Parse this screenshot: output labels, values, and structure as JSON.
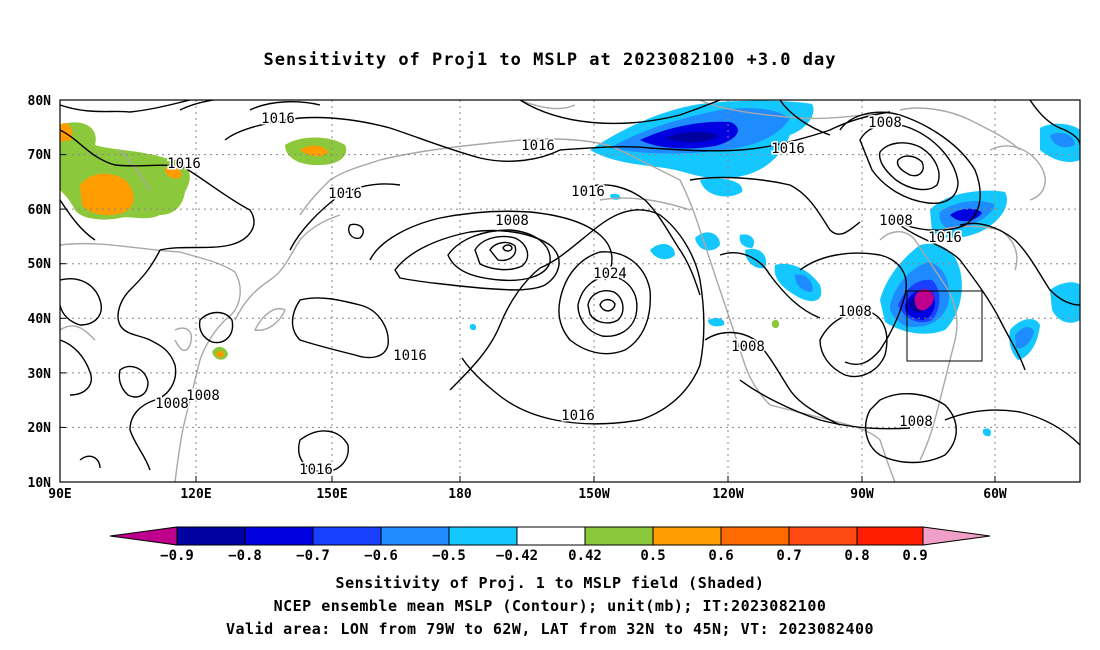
{
  "title": "Sensitivity of Proj1 to MSLP at 2023082100 +3.0 day",
  "map": {
    "lat_labels": [
      "80N",
      "70N",
      "60N",
      "50N",
      "40N",
      "30N",
      "20N",
      "10N"
    ],
    "lon_labels": [
      "90E",
      "120E",
      "150E",
      "180",
      "150W",
      "120W",
      "90W",
      "60W"
    ],
    "valid_box": {
      "lon": [
        "79W",
        "62W"
      ],
      "lat": [
        "32N",
        "45N"
      ]
    },
    "contour_labels": [
      {
        "text": "1016"
      },
      {
        "text": "1016"
      },
      {
        "text": "1016"
      },
      {
        "text": "1016"
      },
      {
        "text": "1016"
      },
      {
        "text": "1016"
      },
      {
        "text": "1016"
      },
      {
        "text": "1016"
      },
      {
        "text": "1008"
      },
      {
        "text": "1024"
      },
      {
        "text": "1016"
      },
      {
        "text": "1008"
      },
      {
        "text": "1008"
      },
      {
        "text": "1008"
      },
      {
        "text": "1008"
      },
      {
        "text": "1008"
      },
      {
        "text": "1008"
      },
      {
        "text": "1008"
      },
      {
        "text": "1016"
      }
    ],
    "colors": {
      "neg_0_9": "#c0008c",
      "neg_0_8": "#0000a0",
      "neg_0_7": "#0000e0",
      "neg_0_6": "#1a40ff",
      "neg_0_5": "#1e8cff",
      "neg_0_42": "#14c8ff",
      "pos_0_42": "#8cc83c",
      "pos_0_5": "#ff9c00",
      "pos_0_6": "#ff6a00",
      "pos_0_7": "#ff4a14",
      "pos_0_8": "#ff1e00",
      "pos_0_9": "#f0a0c8",
      "coast": "#a8a8a8",
      "contour": "#000000",
      "grid": "#888888"
    }
  },
  "colorbar": {
    "labels": [
      "−0.9",
      "−0.8",
      "−0.7",
      "−0.6",
      "−0.5",
      "−0.42",
      "0.42",
      "0.5",
      "0.6",
      "0.7",
      "0.8",
      "0.9"
    ]
  },
  "captions": {
    "line1": "Sensitivity of Proj. 1 to MSLP field (Shaded)",
    "line2": "NCEP ensemble mean MSLP (Contour); unit(mb); IT:2023082100",
    "line3": "Valid area: LON from 79W to 62W, LAT from 32N to 45N; VT: 2023082400"
  }
}
